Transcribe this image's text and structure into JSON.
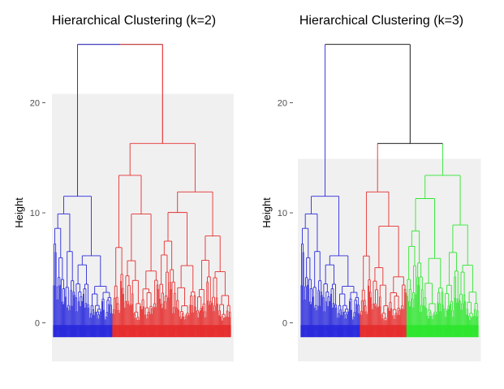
{
  "chart_data": [
    {
      "type": "dendrogram",
      "title": "Hierarchical Clustering (k=2)",
      "xlabel": "",
      "ylabel": "Height",
      "ylim": [
        -3.5,
        25.5
      ],
      "yticks": [
        0,
        10,
        20
      ],
      "root_height": 25.3,
      "n_leaves": 210,
      "cut_height": 20.8,
      "clusters": [
        {
          "color": "#2b2bdd",
          "leaves": 70
        },
        {
          "color": "#e62e2e",
          "leaves": 140
        }
      ],
      "merge_heights": {
        "blue_cluster": [
          11.5,
          9.7,
          8.7,
          7.0,
          6.4,
          4.6
        ],
        "red_cluster": [
          16.3,
          13.4,
          11.9,
          9.5,
          8.7,
          7.9,
          6.0,
          5.3
        ]
      }
    },
    {
      "type": "dendrogram",
      "title": "Hierarchical Clustering (k=3)",
      "xlabel": "",
      "ylabel": "Height",
      "ylim": [
        -3.5,
        25.5
      ],
      "yticks": [
        0,
        10,
        20
      ],
      "root_height": 25.3,
      "n_leaves": 210,
      "cut_height": 14.9,
      "clusters": [
        {
          "color": "#2b2bdd",
          "leaves": 70
        },
        {
          "color": "#e62e2e",
          "leaves": 55
        },
        {
          "color": "#2ee62e",
          "leaves": 85
        }
      ],
      "merge_heights": {
        "blue_cluster": [
          11.5,
          9.7,
          8.7,
          7.0,
          6.4,
          4.6
        ],
        "red_cluster": [
          11.9,
          9.5,
          8.7,
          6.0,
          5.3
        ],
        "green_cluster": [
          13.4,
          9.5,
          7.9,
          6.0,
          5.3
        ]
      }
    }
  ],
  "colors": {
    "panel_bg": "#f0f0f0",
    "link_above_cut": "#000000",
    "blue": "#2b2bdd",
    "red": "#e62e2e",
    "green": "#2ee62e"
  }
}
